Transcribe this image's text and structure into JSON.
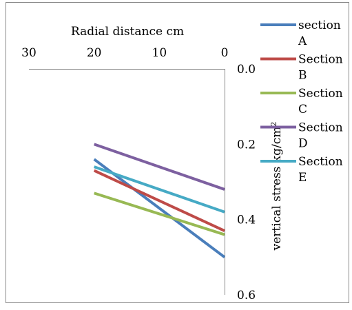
{
  "chart_data": {
    "type": "line",
    "title": "",
    "xlabel": "Radial distance cm",
    "ylabel": "vertical stress kg/cm",
    "ylabel_superscript": "2",
    "xlim": [
      30,
      0
    ],
    "ylim": [
      0.0,
      0.6
    ],
    "x_axis_position": "top",
    "y_axis_position": "right",
    "y_reversed": true,
    "grid": false,
    "legend_position": "top-right",
    "x_ticks": [
      "30",
      "20",
      "10",
      "0"
    ],
    "y_ticks": [
      "0.0",
      "0.2",
      "0.4",
      "0.6"
    ],
    "x": [
      20,
      0
    ],
    "series": [
      {
        "name": "section A",
        "legend_lines": [
          "section",
          "A"
        ],
        "color": "#4a7ebb",
        "values": [
          0.24,
          0.5
        ]
      },
      {
        "name": "Section B",
        "legend_lines": [
          "Section",
          "B"
        ],
        "color": "#be4b48",
        "values": [
          0.27,
          0.43
        ]
      },
      {
        "name": "Section C",
        "legend_lines": [
          "Section",
          "C"
        ],
        "color": "#98b954",
        "values": [
          0.33,
          0.44
        ]
      },
      {
        "name": "Section D",
        "legend_lines": [
          "Section",
          "D"
        ],
        "color": "#7d60a0",
        "values": [
          0.2,
          0.32
        ]
      },
      {
        "name": "Section E",
        "legend_lines": [
          "Section",
          "E"
        ],
        "color": "#46aac5",
        "values": [
          0.26,
          0.38
        ]
      }
    ]
  }
}
